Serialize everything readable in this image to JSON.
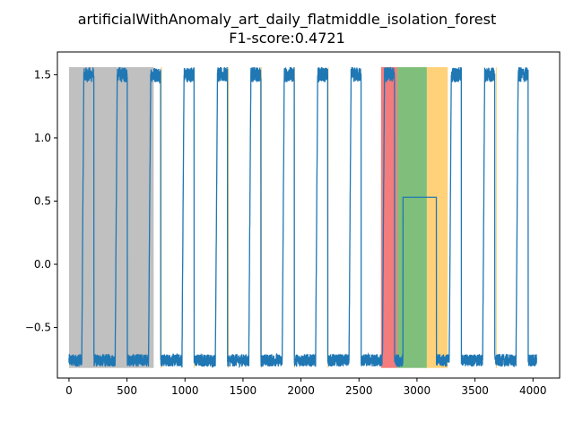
{
  "chart_data": {
    "type": "line",
    "title": "artificialWithAnomaly_art_daily_flatmiddle_isolation_forest",
    "subtitle": "F1-score:0.4721",
    "xlabel": "",
    "ylabel": "",
    "xlim": [
      -100,
      4230
    ],
    "ylim": [
      -0.9,
      1.68
    ],
    "xticks": [
      0,
      500,
      1000,
      1500,
      2000,
      2500,
      3000,
      3500,
      4000
    ],
    "yticks": [
      -0.5,
      0.0,
      0.5,
      1.0,
      1.5
    ],
    "grid": false,
    "legend": "none",
    "signal": {
      "period": 288,
      "count": 4032,
      "low_level": -0.76,
      "high_level": 1.5,
      "high_start_in_period": 110,
      "high_end_in_period": 215,
      "peak_max": 1.56,
      "flat_start": 2880,
      "flat_end": 3168,
      "flat_level": 0.53,
      "color": "#1f77b4"
    },
    "regions": [
      {
        "kind": "gray",
        "x0": 0,
        "x1": 730,
        "color": "#c0c0c0"
      },
      {
        "kind": "red",
        "x0": 2690,
        "x1": 2830,
        "color": "#f47c7c"
      },
      {
        "kind": "green",
        "x0": 2830,
        "x1": 3085,
        "color": "#7fbf7b"
      },
      {
        "kind": "orange",
        "x0": 3085,
        "x1": 3265,
        "color": "#ffd27a"
      },
      {
        "kind": "orange-thin",
        "x0": 790,
        "x1": 800,
        "color": "#ffd27a"
      },
      {
        "kind": "orange-thin",
        "x0": 1075,
        "x1": 1083,
        "color": "#ffd27a"
      },
      {
        "kind": "orange-thin",
        "x0": 1370,
        "x1": 1378,
        "color": "#ffd27a"
      },
      {
        "kind": "orange-thin",
        "x0": 1655,
        "x1": 1663,
        "color": "#ffd27a"
      },
      {
        "kind": "orange-thin",
        "x0": 1940,
        "x1": 1948,
        "color": "#ffd27a"
      },
      {
        "kind": "orange-thin",
        "x0": 2230,
        "x1": 2238,
        "color": "#ffd27a"
      },
      {
        "kind": "orange-thin",
        "x0": 3680,
        "x1": 3688,
        "color": "#ffd27a"
      }
    ]
  }
}
